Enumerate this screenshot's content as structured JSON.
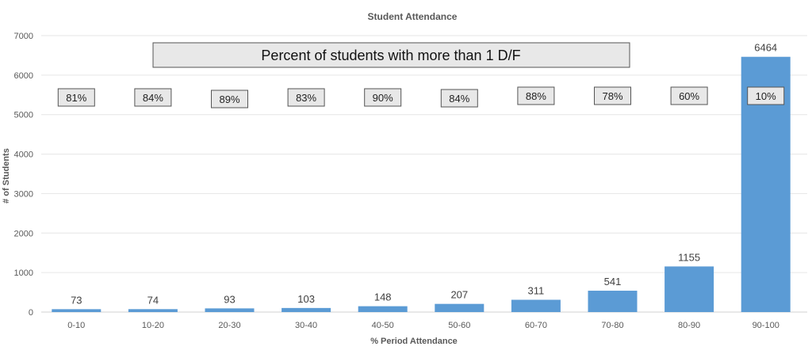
{
  "chart_data": {
    "type": "bar",
    "title": "Student Attendance",
    "xlabel": "% Period Attendance",
    "ylabel": "# of Students",
    "ylim": [
      0,
      7000
    ],
    "yticks": [
      0,
      1000,
      2000,
      3000,
      4000,
      5000,
      6000,
      7000
    ],
    "grid": true,
    "categories": [
      "0-10",
      "10-20",
      "20-30",
      "30-40",
      "40-50",
      "50-60",
      "60-70",
      "70-80",
      "80-90",
      "90-100"
    ],
    "values": [
      73,
      74,
      93,
      103,
      148,
      207,
      311,
      541,
      1155,
      6464
    ],
    "bar_color": "#5b9bd5",
    "annotation_title": "Percent of students with more than 1 D/F",
    "annotations": [
      "81%",
      "84%",
      "89%",
      "83%",
      "90%",
      "84%",
      "88%",
      "78%",
      "60%",
      "10%"
    ]
  }
}
